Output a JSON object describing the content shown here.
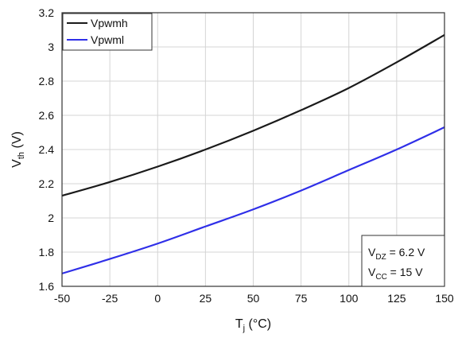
{
  "chart_data": {
    "type": "line",
    "xlabel": {
      "main": "T",
      "sub": "j",
      "rest": " (°C)"
    },
    "ylabel": {
      "main": "V",
      "sub": "th",
      "rest": " (V)"
    },
    "xlim": [
      -50,
      150
    ],
    "ylim": [
      1.6,
      3.2
    ],
    "xticks": [
      -50,
      -25,
      0,
      25,
      50,
      75,
      100,
      125,
      150
    ],
    "yticks": [
      1.6,
      1.8,
      2,
      2.2,
      2.4,
      2.6,
      2.8,
      3,
      3.2
    ],
    "grid": true,
    "legend_position": "top-left",
    "series": [
      {
        "name": "Vpwmh",
        "color": "#1a1a1a",
        "x": [
          -50,
          -25,
          0,
          25,
          50,
          75,
          100,
          125,
          150
        ],
        "y": [
          2.13,
          2.21,
          2.3,
          2.4,
          2.51,
          2.63,
          2.76,
          2.91,
          3.07
        ]
      },
      {
        "name": "Vpwml",
        "color": "#2f2fe8",
        "x": [
          -50,
          -25,
          0,
          25,
          50,
          75,
          100,
          125,
          150
        ],
        "y": [
          1.675,
          1.76,
          1.85,
          1.95,
          2.05,
          2.16,
          2.28,
          2.4,
          2.53
        ]
      }
    ],
    "annotation": [
      {
        "main": "V",
        "sub": "DZ",
        "rest": " = 6.2 V"
      },
      {
        "main": "V",
        "sub": "CC",
        "rest": " = 15 V"
      }
    ]
  }
}
